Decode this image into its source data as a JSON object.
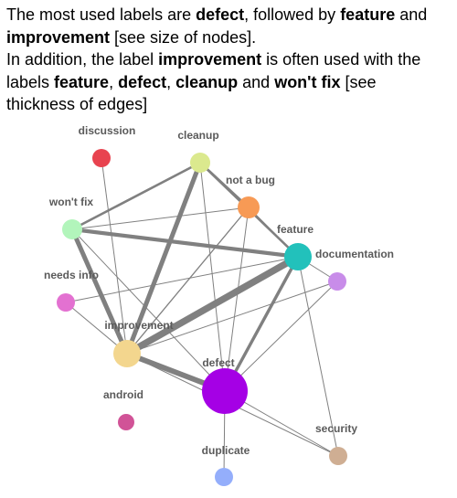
{
  "caption": {
    "line1": [
      {
        "text": "The most used labels are ",
        "bold": false
      },
      {
        "text": "defect",
        "bold": true
      },
      {
        "text": ", followed by ",
        "bold": false
      },
      {
        "text": "feature",
        "bold": true
      },
      {
        "text": " and ",
        "bold": false
      }
    ],
    "line2": [
      {
        "text": "improvement",
        "bold": true
      },
      {
        "text": " [see size of nodes].",
        "bold": false
      }
    ],
    "line3": [
      {
        "text": "In addition, the label ",
        "bold": false
      },
      {
        "text": "improvement",
        "bold": true
      },
      {
        "text": " is often used with the",
        "bold": false
      }
    ],
    "line4": [
      {
        "text": "labels ",
        "bold": false
      },
      {
        "text": "feature",
        "bold": true
      },
      {
        "text": ", ",
        "bold": false
      },
      {
        "text": "defect",
        "bold": true
      },
      {
        "text": ", ",
        "bold": false
      },
      {
        "text": "cleanup",
        "bold": true
      },
      {
        "text": " and ",
        "bold": false
      },
      {
        "text": "won't fix",
        "bold": true
      },
      {
        "text": " [see",
        "bold": false
      }
    ],
    "line5": [
      {
        "text": "thickness of edges]",
        "bold": false
      }
    ]
  },
  "graph": {
    "nodes": [
      {
        "id": "discussion",
        "label": "discussion",
        "color": "#e8434f"
      },
      {
        "id": "cleanup",
        "label": "cleanup",
        "color": "#dbe98e"
      },
      {
        "id": "not-a-bug",
        "label": "not a bug",
        "color": "#f79a55"
      },
      {
        "id": "wont-fix",
        "label": "won't fix",
        "color": "#b2f5bb"
      },
      {
        "id": "feature",
        "label": "feature",
        "color": "#22c1bb"
      },
      {
        "id": "documentation",
        "label": "documentation",
        "color": "#c88ce9"
      },
      {
        "id": "needs-info",
        "label": "needs info",
        "color": "#e371d1"
      },
      {
        "id": "improvement",
        "label": "improvement",
        "color": "#f3d68e"
      },
      {
        "id": "defect",
        "label": "defect",
        "color": "#a500e5"
      },
      {
        "id": "android",
        "label": "android",
        "color": "#d15397"
      },
      {
        "id": "security",
        "label": "security",
        "color": "#cfae93"
      },
      {
        "id": "duplicate",
        "label": "duplicate",
        "color": "#94aefb"
      }
    ],
    "edges": [
      {
        "source": "improvement",
        "target": "feature",
        "weight": 5
      },
      {
        "source": "improvement",
        "target": "defect",
        "weight": 4
      },
      {
        "source": "improvement",
        "target": "cleanup",
        "weight": 3.5
      },
      {
        "source": "improvement",
        "target": "wont-fix",
        "weight": 3.5
      },
      {
        "source": "wont-fix",
        "target": "feature",
        "weight": 3
      },
      {
        "source": "defect",
        "target": "feature",
        "weight": 2.5
      },
      {
        "source": "wont-fix",
        "target": "cleanup",
        "weight": 2
      },
      {
        "source": "cleanup",
        "target": "not-a-bug",
        "weight": 2
      },
      {
        "source": "cleanup",
        "target": "feature",
        "weight": 2
      },
      {
        "source": "improvement",
        "target": "not-a-bug",
        "weight": 1.2
      },
      {
        "source": "wont-fix",
        "target": "not-a-bug",
        "weight": 1
      },
      {
        "source": "defect",
        "target": "not-a-bug",
        "weight": 1
      },
      {
        "source": "defect",
        "target": "cleanup",
        "weight": 1
      },
      {
        "source": "not-a-bug",
        "target": "feature",
        "weight": 1
      },
      {
        "source": "wont-fix",
        "target": "defect",
        "weight": 1
      },
      {
        "source": "discussion",
        "target": "improvement",
        "weight": 1
      },
      {
        "source": "needs-info",
        "target": "improvement",
        "weight": 1
      },
      {
        "source": "needs-info",
        "target": "feature",
        "weight": 1
      },
      {
        "source": "improvement",
        "target": "documentation",
        "weight": 1
      },
      {
        "source": "feature",
        "target": "documentation",
        "weight": 1
      },
      {
        "source": "feature",
        "target": "security",
        "weight": 1
      },
      {
        "source": "defect",
        "target": "security",
        "weight": 1
      },
      {
        "source": "improvement",
        "target": "security",
        "weight": 1
      },
      {
        "source": "defect",
        "target": "duplicate",
        "weight": 1
      },
      {
        "source": "defect",
        "target": "documentation",
        "weight": 1
      }
    ]
  }
}
